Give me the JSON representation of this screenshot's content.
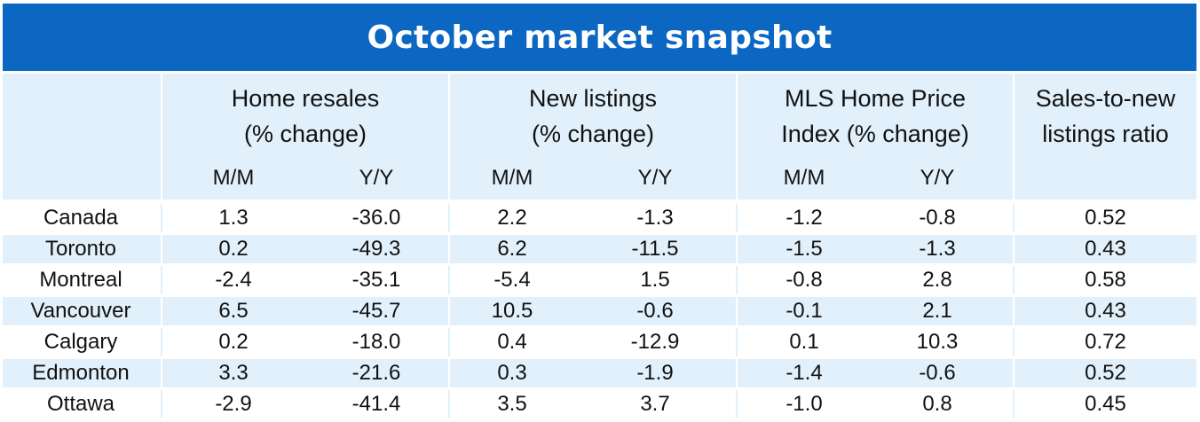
{
  "title": "October market snapshot",
  "headers": {
    "resales": [
      "Home resales",
      "(% change)"
    ],
    "listings": [
      "New listings",
      "(% change)"
    ],
    "mls": [
      "MLS Home Price",
      "Index (% change)"
    ],
    "ratio": [
      "Sales-to-new",
      "listings ratio"
    ]
  },
  "subheaders": [
    "M/M",
    "Y/Y",
    "M/M",
    "Y/Y",
    "M/M",
    "Y/Y"
  ],
  "rows": [
    {
      "city": "Canada",
      "values": [
        "1.3",
        "-36.0",
        "2.2",
        "-1.3",
        "-1.2",
        "-0.8",
        "0.52"
      ]
    },
    {
      "city": "Toronto",
      "values": [
        "0.2",
        "-49.3",
        "6.2",
        "-11.5",
        "-1.5",
        "-1.3",
        "0.43"
      ]
    },
    {
      "city": "Montreal",
      "values": [
        "-2.4",
        "-35.1",
        "-5.4",
        "1.5",
        "-0.8",
        "2.8",
        "0.58"
      ]
    },
    {
      "city": "Vancouver",
      "values": [
        "6.5",
        "-45.7",
        "10.5",
        "-0.6",
        "-0.1",
        "2.1",
        "0.43"
      ]
    },
    {
      "city": "Calgary",
      "values": [
        "0.2",
        "-18.0",
        "0.4",
        "-12.9",
        "0.1",
        "10.3",
        "0.72"
      ]
    },
    {
      "city": "Edmonton",
      "values": [
        "3.3",
        "-21.6",
        "0.3",
        "-1.9",
        "-1.4",
        "-0.6",
        "0.52"
      ]
    },
    {
      "city": "Ottawa",
      "values": [
        "-2.9",
        "-41.4",
        "3.5",
        "3.7",
        "-1.0",
        "0.8",
        "0.45"
      ]
    }
  ],
  "colors": {
    "title_bg": "#0b67c2",
    "band": "#e1f0fb",
    "text": "#111111"
  }
}
